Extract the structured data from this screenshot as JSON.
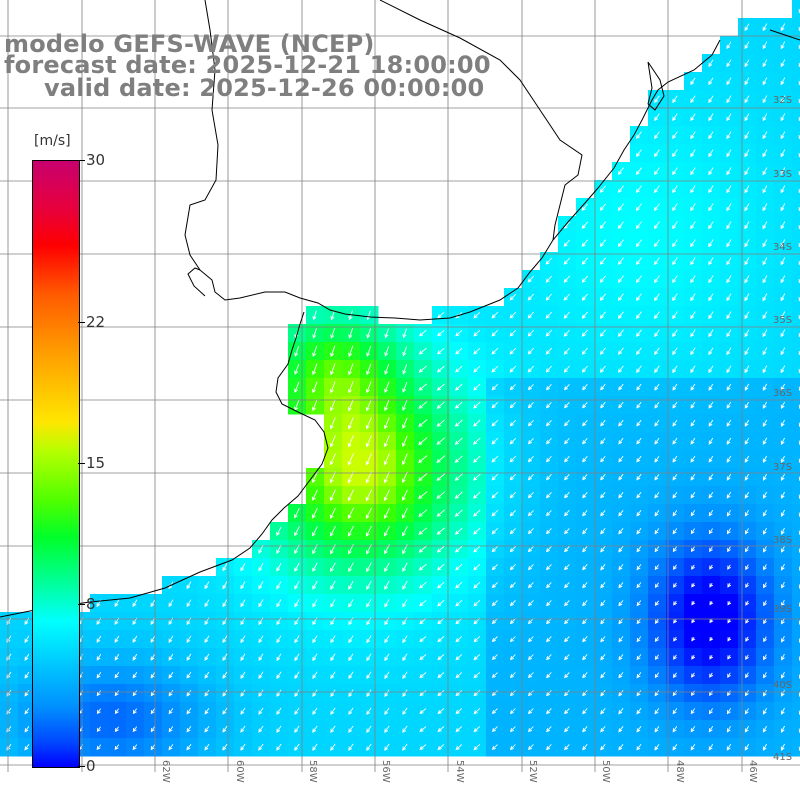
{
  "header": {
    "line1": "modelo GEFS-WAVE (NCEP)",
    "line2": "forecast date: 2025-12-21 18:00:00",
    "line3": "valid date: 2025-12-26 00:00:00"
  },
  "colorbar": {
    "unit": "[m/s]",
    "ticks": [
      "30",
      "22",
      "15",
      "8",
      "0"
    ],
    "tick_values": [
      30,
      22,
      15,
      8,
      0
    ],
    "range": [
      0,
      30
    ]
  },
  "map": {
    "lon_labels": [
      "62W",
      "60W",
      "58W",
      "56W",
      "54W",
      "52W",
      "50W",
      "48W",
      "46W"
    ],
    "lat_labels": [
      "32S",
      "33S",
      "34S",
      "35S",
      "36S",
      "37S",
      "38S",
      "39S",
      "40S",
      "41S"
    ],
    "field": "wind speed",
    "colors": {
      "land": "#ffffff",
      "grid": "#808080",
      "coast": "#000000",
      "arrows": "#ffffff"
    }
  }
}
